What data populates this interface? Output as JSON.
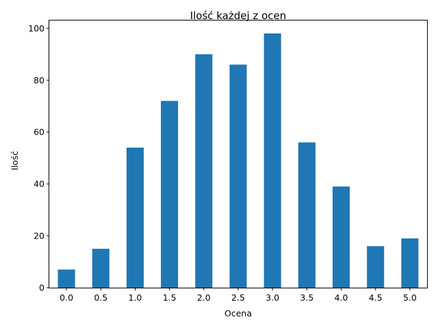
{
  "chart_data": {
    "type": "bar",
    "title": "Ilość każdej z ocen",
    "xlabel": "Ocena",
    "ylabel": "Ilość",
    "categories": [
      "0.0",
      "0.5",
      "1.0",
      "1.5",
      "2.0",
      "2.5",
      "3.0",
      "3.5",
      "4.0",
      "4.5",
      "5.0"
    ],
    "values": [
      7,
      15,
      54,
      72,
      90,
      86,
      98,
      56,
      39,
      16,
      19
    ],
    "ylim": [
      0,
      103
    ],
    "yticks": [
      "0",
      "20",
      "40",
      "60",
      "80",
      "100"
    ],
    "bar_color": "#1f77b4",
    "grid": false,
    "legend": "none"
  }
}
